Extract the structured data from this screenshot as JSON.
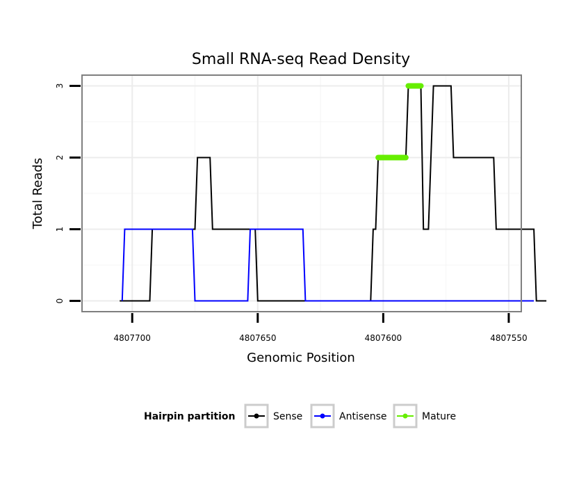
{
  "chart_data": {
    "type": "line",
    "title": "Small RNA-seq Read Density",
    "xlabel": "Genomic Position",
    "ylabel": "Total Reads",
    "xlim": [
      4807720,
      4807545
    ],
    "ylim": [
      -0.15,
      3.15
    ],
    "x_ticks": [
      4807700,
      4807650,
      4807600,
      4807550
    ],
    "x_tick_labels": [
      "4807700",
      "4807650",
      "4807600",
      "4807550"
    ],
    "y_ticks": [
      0,
      1,
      2,
      3
    ],
    "y_tick_labels": [
      "0",
      "1",
      "2",
      "3"
    ],
    "grid": true,
    "legend": {
      "title": "Hairpin partition",
      "position": "bottom"
    },
    "series": [
      {
        "name": "Sense",
        "color": "#000000",
        "points": [
          [
            4807705,
            0
          ],
          [
            4807693,
            0
          ],
          [
            4807692,
            1
          ],
          [
            4807675,
            1
          ],
          [
            4807674,
            2
          ],
          [
            4807669,
            2
          ],
          [
            4807668,
            1
          ],
          [
            4807651,
            1
          ],
          [
            4807650,
            0
          ],
          [
            4807625,
            0
          ],
          [
            4807605,
            0
          ],
          [
            4807604,
            1
          ],
          [
            4807603,
            1
          ],
          [
            4807602,
            2
          ],
          [
            4807591,
            2
          ],
          [
            4807590,
            3
          ],
          [
            4807585,
            3
          ],
          [
            4807584,
            1
          ],
          [
            4807582,
            1
          ],
          [
            4807580,
            3
          ],
          [
            4807573,
            3
          ],
          [
            4807572,
            2
          ],
          [
            4807556,
            2
          ],
          [
            4807555,
            1
          ],
          [
            4807540,
            1
          ],
          [
            4807539,
            0
          ],
          [
            4807535,
            0
          ]
        ]
      },
      {
        "name": "Antisense",
        "color": "#0000ff",
        "points": [
          [
            4807704,
            0
          ],
          [
            4807703,
            1
          ],
          [
            4807676,
            1
          ],
          [
            4807675,
            0
          ],
          [
            4807654,
            0
          ],
          [
            4807653,
            1
          ],
          [
            4807632,
            1
          ],
          [
            4807631,
            0
          ],
          [
            4807540,
            0
          ]
        ]
      },
      {
        "name": "Mature",
        "color": "#66ee00",
        "segments": [
          [
            [
              4807602,
              2
            ],
            [
              4807591,
              2
            ]
          ],
          [
            [
              4807590,
              3
            ],
            [
              4807585,
              3
            ]
          ]
        ]
      }
    ]
  }
}
